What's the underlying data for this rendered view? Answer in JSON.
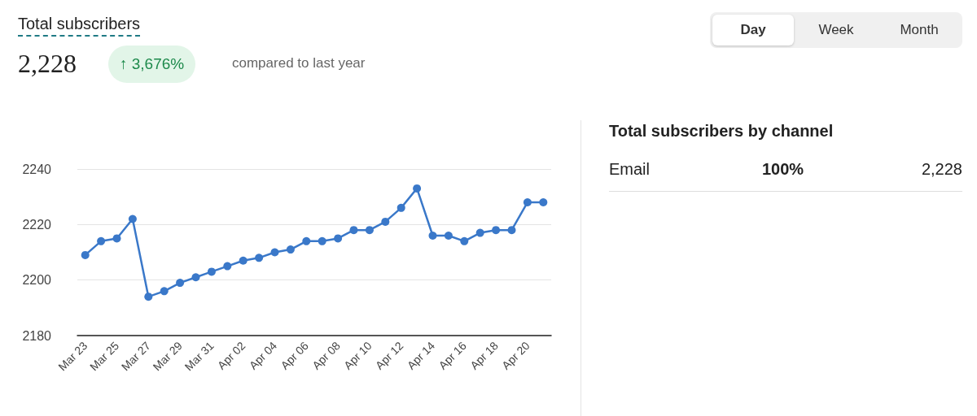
{
  "chart_data": [
    {
      "type": "line",
      "title": "Total subscribers",
      "annotations": [
        "2,228",
        "↑ 3,676%",
        "compared to last year",
        "Day",
        "Week",
        "Month"
      ],
      "categories": [
        "Mar 23",
        null,
        "Mar 25",
        null,
        "Mar 27",
        null,
        "Mar 29",
        null,
        "Mar 31",
        null,
        "Apr 02",
        null,
        "Apr 04",
        null,
        "Apr 06",
        null,
        "Apr 08",
        null,
        "Apr 10",
        null,
        "Apr 12",
        null,
        "Apr 14",
        null,
        "Apr 16",
        null,
        "Apr 18",
        null,
        "Apr 20",
        null
      ],
      "series": [
        {
          "color": "#3a78c9",
          "values": [
            2209,
            2214,
            2215,
            2222,
            2194,
            2196,
            2199,
            2201,
            2203,
            2205,
            2207,
            2208,
            2210,
            2211,
            2214,
            2214,
            2215,
            2218,
            2218,
            2221,
            2226,
            2233,
            2216,
            2216,
            2214,
            2217,
            2218,
            2218,
            2228,
            2228
          ]
        }
      ],
      "ylim": [
        2180,
        2240
      ],
      "yticks": [
        2180,
        2200,
        2220,
        2240
      ],
      "grid": "y",
      "marker": "circle",
      "line_style": "solid"
    },
    {
      "type": "other",
      "title": "Total subscribers by channel",
      "annotations": [
        "Email",
        "100%",
        "2,228"
      ]
    }
  ]
}
